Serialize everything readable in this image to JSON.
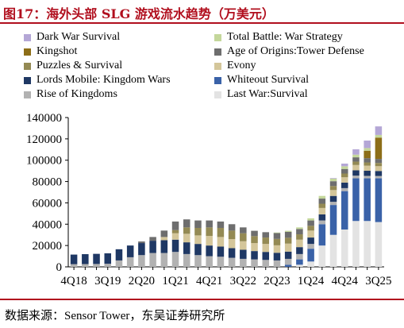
{
  "figure_title": "图17：海外头部 SLG 游戏流水趋势（万美元）",
  "source_note": "数据来源：Sensor Tower，东吴证券研究所",
  "chart_data": {
    "type": "bar",
    "stacked": true,
    "title": "",
    "xlabel": "",
    "ylabel": "",
    "ylim": [
      0,
      140000
    ],
    "yticks": [
      0,
      20000,
      40000,
      60000,
      80000,
      100000,
      120000,
      140000
    ],
    "ytick_labels": [
      "0",
      "20000",
      "40000",
      "60000",
      "80000",
      "100000",
      "120000",
      "140000"
    ],
    "grid": false,
    "legend_position": "top",
    "categories": [
      "4Q18",
      "1Q19",
      "2Q19",
      "3Q19",
      "4Q19",
      "1Q20",
      "2Q20",
      "3Q20",
      "4Q20",
      "1Q21",
      "2Q21",
      "3Q21",
      "4Q21",
      "1Q22",
      "2Q22",
      "3Q22",
      "4Q22",
      "1Q23",
      "2Q23",
      "3Q23",
      "4Q23",
      "1Q24",
      "2Q24",
      "3Q24",
      "4Q24",
      "1Q25",
      "2Q25",
      "3Q25"
    ],
    "x_tick_labels": [
      "4Q18",
      "",
      "",
      "3Q19",
      "",
      "",
      "2Q20",
      "",
      "",
      "1Q21",
      "",
      "",
      "4Q21",
      "",
      "",
      "3Q22",
      "",
      "",
      "2Q23",
      "",
      "",
      "1Q24",
      "",
      "",
      "4Q24",
      "",
      "",
      "3Q25"
    ],
    "series": [
      {
        "name": "Last War:Survival",
        "color": "#e3e3e3",
        "values": [
          0,
          0,
          0,
          0,
          0,
          0,
          0,
          0,
          0,
          0,
          0,
          0,
          0,
          0,
          0,
          0,
          0,
          0,
          0,
          0,
          2000,
          5000,
          20000,
          30000,
          35000,
          43000,
          43000,
          42000
        ]
      },
      {
        "name": "Whiteout Survival",
        "color": "#3a62a8",
        "values": [
          0,
          0,
          0,
          0,
          0,
          0,
          0,
          0,
          0,
          0,
          0,
          0,
          0,
          0,
          0,
          0,
          0,
          0,
          0,
          2000,
          5000,
          12000,
          20000,
          28000,
          36000,
          40000,
          40000,
          41000
        ]
      },
      {
        "name": "Rise of Kingdoms",
        "color": "#b2b2b2",
        "values": [
          2500,
          2600,
          2700,
          2900,
          6000,
          9000,
          11000,
          13000,
          13000,
          14000,
          12000,
          11000,
          10000,
          9500,
          8500,
          7500,
          7000,
          6500,
          6000,
          5500,
          5000,
          4500,
          3500,
          3000,
          2800,
          2500,
          2300,
          2200
        ]
      },
      {
        "name": "Lords Mobile: Kingdom Wars",
        "color": "#1f3864",
        "values": [
          9000,
          9300,
          9500,
          9800,
          10500,
          11000,
          11300,
          11500,
          12000,
          11500,
          11000,
          10500,
          10000,
          9500,
          9000,
          8500,
          7800,
          7500,
          7200,
          6800,
          6500,
          6000,
          5700,
          5500,
          5200,
          5000,
          4800,
          4700
        ]
      },
      {
        "name": "Evony",
        "color": "#d4c69a",
        "values": [
          0,
          0,
          0,
          0,
          0,
          0,
          0,
          0,
          3000,
          6000,
          8000,
          8000,
          9000,
          9000,
          8500,
          8000,
          7500,
          7500,
          7000,
          7500,
          7000,
          6500,
          6000,
          5500,
          5000,
          5000,
          4800,
          4500
        ]
      },
      {
        "name": "Puzzles & Survival",
        "color": "#948a54",
        "values": [
          0,
          0,
          0,
          0,
          0,
          0,
          0,
          0,
          0,
          3000,
          6000,
          7000,
          8000,
          8500,
          8000,
          7500,
          6500,
          6000,
          6000,
          5500,
          5000,
          4500,
          4000,
          3800,
          3500,
          3200,
          3000,
          3000
        ]
      },
      {
        "name": "Age of Origins:Tower Defense",
        "color": "#6e6e6e",
        "values": [
          0,
          0,
          0,
          0,
          0,
          0,
          1500,
          3500,
          6000,
          8000,
          7500,
          7000,
          6500,
          6000,
          6000,
          5500,
          5000,
          5000,
          5500,
          5500,
          5000,
          5000,
          4800,
          4500,
          4300,
          4000,
          4000,
          3800
        ]
      },
      {
        "name": "Kingshot",
        "color": "#8d6e18",
        "values": [
          0,
          0,
          0,
          0,
          0,
          0,
          0,
          0,
          0,
          0,
          0,
          0,
          0,
          0,
          0,
          0,
          0,
          0,
          0,
          0,
          0,
          0,
          0,
          0,
          0,
          0,
          7000,
          20000
        ]
      },
      {
        "name": "Total Battle: War Strategy",
        "color": "#c4d79b",
        "values": [
          0,
          0,
          0,
          0,
          0,
          0,
          0,
          0,
          0,
          0,
          0,
          0,
          0,
          0,
          0,
          0,
          0,
          0,
          500,
          1000,
          1500,
          2000,
          2500,
          2500,
          2500,
          2500,
          2500,
          2500
        ]
      },
      {
        "name": "Dark War Survival",
        "color": "#b4a7d6",
        "values": [
          0,
          0,
          0,
          0,
          0,
          0,
          0,
          0,
          0,
          0,
          0,
          0,
          0,
          0,
          0,
          0,
          0,
          0,
          0,
          0,
          0,
          0,
          0,
          500,
          2500,
          5000,
          7000,
          8000
        ]
      }
    ]
  }
}
